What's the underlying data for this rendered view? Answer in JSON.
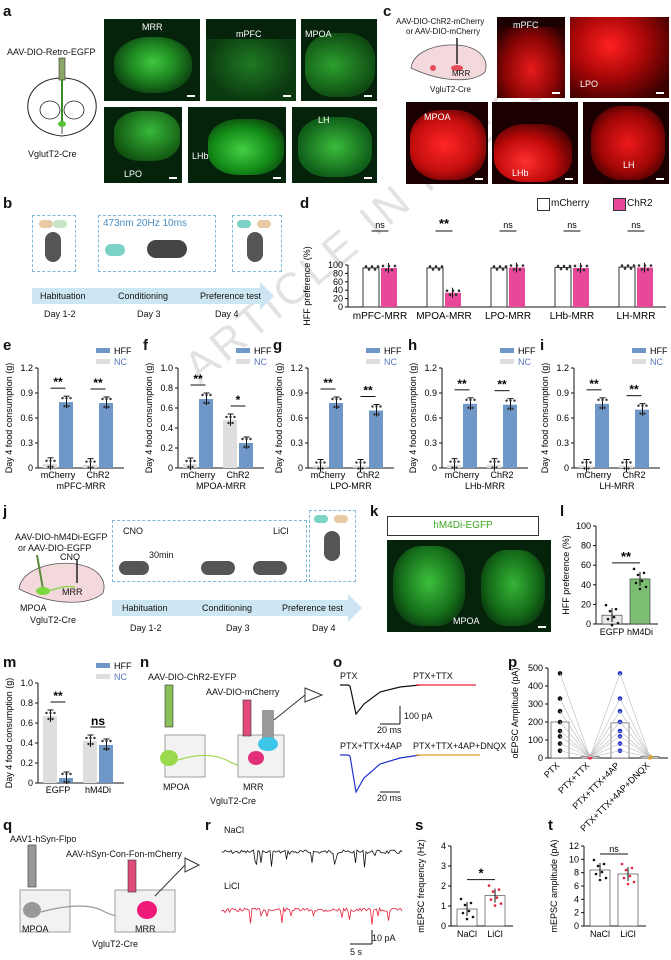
{
  "watermark": "ARTICLE IN PRESS",
  "panels": {
    "a": "a",
    "b": "b",
    "c": "c",
    "d": "d",
    "e": "e",
    "f": "f",
    "g": "g",
    "h": "h",
    "i": "i",
    "j": "j",
    "k": "k",
    "l": "l",
    "m": "m",
    "n": "n",
    "o": "o",
    "p": "p",
    "q": "q",
    "r": "r",
    "s": "s",
    "t": "t"
  },
  "colors": {
    "mcherry": "#ffffff",
    "chr2": "#e8489a",
    "hff": "#6f98c9",
    "nc": "#dedede",
    "green_fluor": "#37d13b",
    "red_fluor": "#ff1a1a",
    "blue_trace": "#2233cc",
    "red_trace": "#e8223a"
  },
  "a": {
    "virus": "AAV-DIO-Retro-EGFP",
    "mouse": "VglutT2-Cre",
    "images": [
      "MRR",
      "mPFC",
      "MPOA",
      "LPO",
      "LHb",
      "LH"
    ]
  },
  "c": {
    "virus1": "AAV-DIO-ChR2-mCherry",
    "virus2": "or  AAV-DIO-mCherry",
    "target": "MRR",
    "mouse": "VgluT2-Cre",
    "images": [
      "mPFC",
      "LPO",
      "MPOA",
      "LHb",
      "LH"
    ]
  },
  "b": {
    "stim": "473nm  20Hz  10ms",
    "phases": [
      "Habituation",
      "Conditioning",
      "Preference test"
    ],
    "days": [
      "Day 1-2",
      "Day 3",
      "Day 4"
    ]
  },
  "d": {
    "ylabel": "HFF preference (%)",
    "legend": [
      "mCherry",
      "ChR2"
    ],
    "yticks": [
      "0",
      "20",
      "40",
      "60",
      "80",
      "100"
    ]
  },
  "consumption_ylabel": "Day 4 food consumption (g)",
  "legend_hff_nc": [
    "HFF",
    "NC"
  ],
  "j": {
    "virus1": "AAV-DIO-hM4Di-EGFP",
    "virus2": "or  AAV-DIO-EGFP",
    "cno": "CNO",
    "mrr": "MRR",
    "mpoa": "MPOA",
    "mouse": "VgluT2-Cre",
    "cno2": "CNO",
    "wait": "30min",
    "licl": "LiCl",
    "phases": [
      "Habituation",
      "Conditioning",
      "Preference test"
    ],
    "days": [
      "Day 1-2",
      "Day 3",
      "Day 4"
    ]
  },
  "k": {
    "title": "hM4Di-EGFP",
    "region": "MPOA"
  },
  "l": {
    "ylabel": "HFF preference (%)"
  },
  "n": {
    "virus1": "AAV-DIO-ChR2-EYFP",
    "virus2": "AAV-DIO-mCherry",
    "mpoa": "MPOA",
    "mrr": "MRR",
    "mouse": "VgluT2-Cre"
  },
  "o": {
    "t1": "PTX",
    "t2": "PTX+TTX",
    "t3": "PTX+TTX+4AP",
    "t4": "PTX+TTX+4AP+DNQX",
    "sb_y": "100 pA",
    "sb_x": "20 ms"
  },
  "p": {
    "ylabel": "oEPSC Amplitude (pA)"
  },
  "q": {
    "virus1": "AAV1-hSyn-Flpo",
    "virus2": "AAV-hSyn-Con-Fon-mCherry",
    "mpoa": "MPOA",
    "mrr": "MRR",
    "mouse": "VgluT2-Cre"
  },
  "r": {
    "nacl": "NaCl",
    "licl": "LiCl",
    "sb_y": "10 pA",
    "sb_x": "5 s"
  },
  "s": {
    "ylabel": "mEPSC frequency (Hz)",
    "sig": "*"
  },
  "t": {
    "ylabel": "mEPSC amplitude (pA)",
    "sig": "ns"
  },
  "chart_data": [
    {
      "panel": "d",
      "type": "bar",
      "ylabel": "HFF preference (%)",
      "ylim": [
        0,
        100
      ],
      "categories": [
        "mPFC-MRR",
        "MPOA-MRR",
        "LPO-MRR",
        "LHb-MRR",
        "LH-MRR"
      ],
      "series": [
        {
          "name": "mCherry",
          "values": [
            93,
            93,
            93,
            94,
            95
          ]
        },
        {
          "name": "ChR2",
          "values": [
            93,
            34,
            94,
            93,
            94
          ]
        }
      ],
      "significance": [
        "ns",
        "**",
        "ns",
        "ns",
        "ns"
      ]
    },
    {
      "panel": "e",
      "type": "bar",
      "xlabel": "mPFC-MRR",
      "ylabel": "Day 4 food consumption (g)",
      "ylim": [
        0,
        1.2
      ],
      "yticks": [
        "0",
        "0.3",
        "0.6",
        "0.9",
        "1.2"
      ],
      "categories": [
        "mCherry",
        "ChR2"
      ],
      "series": [
        {
          "name": "HFF",
          "values": [
            0.79,
            0.78
          ]
        },
        {
          "name": "NC",
          "values": [
            0.05,
            0.04
          ]
        }
      ],
      "significance": [
        "**",
        "**"
      ]
    },
    {
      "panel": "f",
      "type": "bar",
      "xlabel": "MPOA-MRR",
      "ylabel": "Day 4 food consumption (g)",
      "ylim": [
        0,
        1.0
      ],
      "yticks": [
        "0",
        "0.2",
        "0.4",
        "0.6",
        "0.8",
        "1.0"
      ],
      "categories": [
        "mCherry",
        "ChR2"
      ],
      "series": [
        {
          "name": "HFF",
          "values": [
            0.69,
            0.25
          ]
        },
        {
          "name": "NC",
          "values": [
            0.04,
            0.48
          ]
        }
      ],
      "significance": [
        "**",
        "*"
      ]
    },
    {
      "panel": "g",
      "type": "bar",
      "xlabel": "LPO-MRR",
      "ylabel": "Day 4 food consumption (g)",
      "ylim": [
        0,
        1.2
      ],
      "yticks": [
        "0",
        "0.3",
        "0.6",
        "0.9",
        "1.2"
      ],
      "categories": [
        "mCherry",
        "ChR2"
      ],
      "series": [
        {
          "name": "HFF",
          "values": [
            0.78,
            0.69
          ]
        },
        {
          "name": "NC",
          "values": [
            0.03,
            0.03
          ]
        }
      ],
      "significance": [
        "**",
        "**"
      ]
    },
    {
      "panel": "h",
      "type": "bar",
      "xlabel": "LHb-MRR",
      "ylabel": "Day 4 food consumption (g)",
      "ylim": [
        0,
        1.2
      ],
      "yticks": [
        "0",
        "0.3",
        "0.6",
        "0.9",
        "1.2"
      ],
      "categories": [
        "mCherry",
        "ChR2"
      ],
      "series": [
        {
          "name": "HFF",
          "values": [
            0.77,
            0.76
          ]
        },
        {
          "name": "NC",
          "values": [
            0.04,
            0.04
          ]
        }
      ],
      "significance": [
        "**",
        "**"
      ]
    },
    {
      "panel": "i",
      "type": "bar",
      "xlabel": "LH-MRR",
      "ylabel": "Day 4 food consumption (g)",
      "ylim": [
        0,
        1.2
      ],
      "yticks": [
        "0",
        "0.3",
        "0.6",
        "0.9",
        "1.2"
      ],
      "categories": [
        "mCherry",
        "ChR2"
      ],
      "series": [
        {
          "name": "HFF",
          "values": [
            0.77,
            0.7
          ]
        },
        {
          "name": "NC",
          "values": [
            0.03,
            0.03
          ]
        }
      ],
      "significance": [
        "**",
        "**"
      ]
    },
    {
      "panel": "l",
      "type": "bar",
      "ylabel": "HFF preference (%)",
      "ylim": [
        0,
        100
      ],
      "yticks": [
        "0",
        "20",
        "40",
        "60",
        "80",
        "100"
      ],
      "categories": [
        "EGFP",
        "hM4Di"
      ],
      "values": [
        9,
        46
      ],
      "significance": [
        "**"
      ]
    },
    {
      "panel": "m",
      "type": "bar",
      "ylabel": "Day 4 food consumption (g)",
      "ylim": [
        0,
        1.0
      ],
      "yticks": [
        "0",
        "0.2",
        "0.4",
        "0.6",
        "0.8",
        "1.0"
      ],
      "categories": [
        "EGFP",
        "hM4Di"
      ],
      "series": [
        {
          "name": "HFF",
          "values": [
            0.05,
            0.38
          ]
        },
        {
          "name": "NC",
          "values": [
            0.67,
            0.42
          ]
        }
      ],
      "significance": [
        "**",
        "ns"
      ]
    },
    {
      "panel": "p",
      "type": "scatter",
      "ylabel": "oEPSC Amplitude (pA)",
      "ylim": [
        0,
        500
      ],
      "yticks": [
        "0",
        "100",
        "200",
        "300",
        "400",
        "500"
      ],
      "categories": [
        "PTX",
        "PTX+TTX",
        "PTX+TTX+4AP",
        "PTX+TTX+4AP+DNQX"
      ],
      "values": [
        200,
        8,
        195,
        8
      ]
    },
    {
      "panel": "s",
      "type": "bar",
      "ylabel": "mEPSC frequency (Hz)",
      "ylim": [
        0,
        4
      ],
      "yticks": [
        "0",
        "1",
        "2",
        "3",
        "4"
      ],
      "categories": [
        "NaCl",
        "LiCl"
      ],
      "values": [
        0.85,
        1.52
      ],
      "significance": [
        "*"
      ]
    },
    {
      "panel": "t",
      "type": "bar",
      "ylabel": "mEPSC amplitude (pA)",
      "ylim": [
        0,
        12
      ],
      "yticks": [
        "0",
        "2",
        "4",
        "6",
        "8",
        "10",
        "12"
      ],
      "categories": [
        "NaCl",
        "LiCl"
      ],
      "values": [
        8.4,
        7.8
      ],
      "significance": [
        "ns"
      ]
    }
  ]
}
